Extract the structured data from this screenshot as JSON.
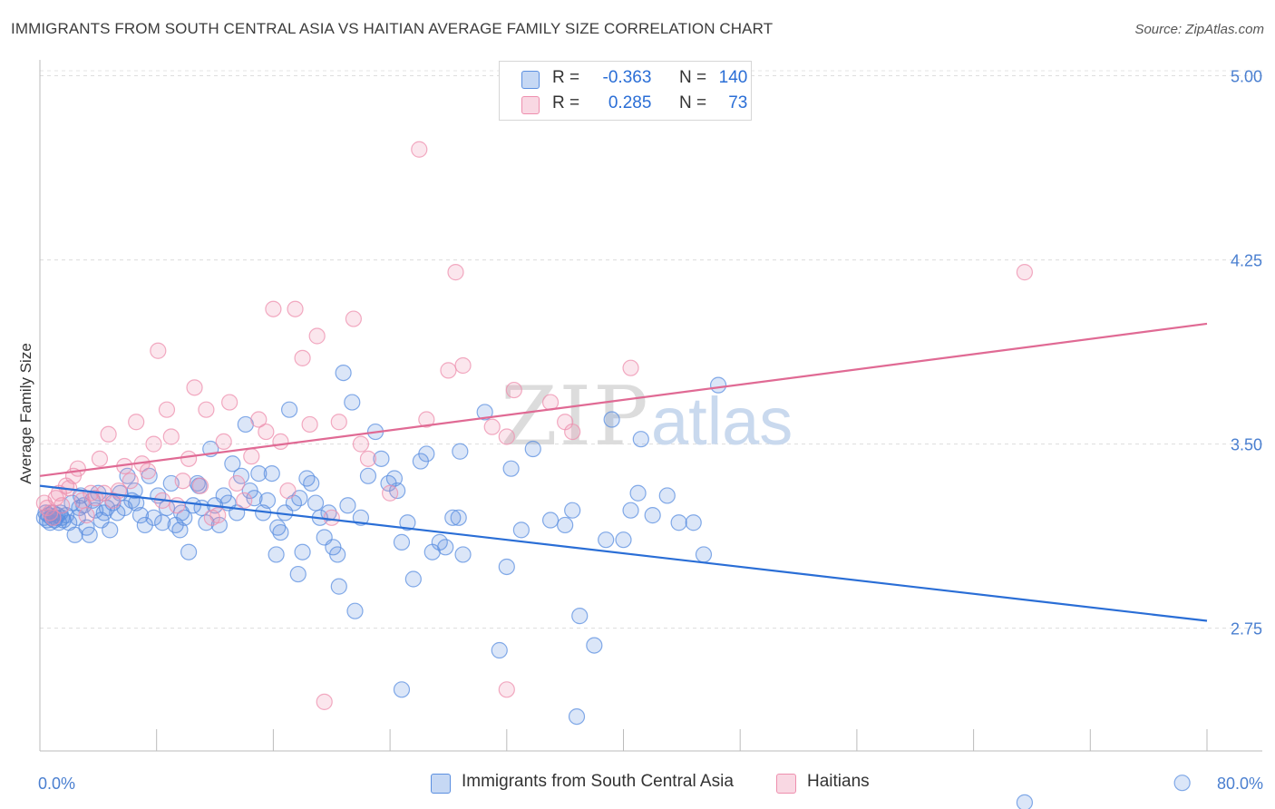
{
  "title": "IMMIGRANTS FROM SOUTH CENTRAL ASIA VS HAITIAN AVERAGE FAMILY SIZE CORRELATION CHART",
  "source": "Source: ZipAtlas.com",
  "watermark": {
    "zip": "ZIP",
    "atlas": "atlas"
  },
  "legend": {
    "r_label": "R =",
    "n_label": "N =",
    "rows": [
      {
        "r": "-0.363",
        "n": "140",
        "color": "#5b8fe0"
      },
      {
        "r": "0.285",
        "n": "73",
        "color": "#ee8fae"
      }
    ]
  },
  "chart_data": {
    "type": "scatter",
    "ylabel": "Average Family Size",
    "xlim": [
      0,
      80
    ],
    "ylim": [
      2.25,
      5.05
    ],
    "yticks": [
      2.75,
      3.5,
      4.25,
      5.0
    ],
    "ytick_labels": [
      "2.75",
      "3.50",
      "4.25",
      "5.00"
    ],
    "xtick_labels": [
      "0.0%",
      "80.0%"
    ],
    "grid": true,
    "legend_placement": "top-center",
    "series": [
      {
        "name": "Immigrants from South Central Asia",
        "color": "#5b8fe0",
        "trend": {
          "x": [
            0,
            80
          ],
          "y": [
            3.33,
            2.78
          ]
        },
        "points": [
          [
            0.3,
            3.2
          ],
          [
            0.4,
            3.22
          ],
          [
            0.5,
            3.19
          ],
          [
            0.6,
            3.21
          ],
          [
            0.7,
            3.18
          ],
          [
            0.8,
            3.2
          ],
          [
            0.9,
            3.22
          ],
          [
            1.0,
            3.19
          ],
          [
            1.1,
            3.2
          ],
          [
            1.2,
            3.21
          ],
          [
            1.3,
            3.18
          ],
          [
            1.4,
            3.22
          ],
          [
            1.5,
            3.2
          ],
          [
            1.6,
            3.19
          ],
          [
            1.8,
            3.21
          ],
          [
            2.0,
            3.18
          ],
          [
            2.2,
            3.26
          ],
          [
            2.4,
            3.13
          ],
          [
            2.6,
            3.2
          ],
          [
            2.8,
            3.29
          ],
          [
            3.0,
            3.25
          ],
          [
            3.2,
            3.16
          ],
          [
            3.4,
            3.13
          ],
          [
            3.6,
            3.27
          ],
          [
            3.8,
            3.23
          ],
          [
            4.0,
            3.3
          ],
          [
            4.2,
            3.19
          ],
          [
            4.4,
            3.22
          ],
          [
            4.6,
            3.24
          ],
          [
            4.8,
            3.15
          ],
          [
            5.0,
            3.26
          ],
          [
            5.3,
            3.22
          ],
          [
            5.5,
            3.3
          ],
          [
            5.8,
            3.24
          ],
          [
            6.0,
            3.37
          ],
          [
            6.3,
            3.27
          ],
          [
            6.6,
            3.26
          ],
          [
            6.9,
            3.21
          ],
          [
            7.2,
            3.17
          ],
          [
            7.5,
            3.37
          ],
          [
            7.8,
            3.2
          ],
          [
            8.1,
            3.29
          ],
          [
            8.4,
            3.18
          ],
          [
            8.7,
            3.24
          ],
          [
            9.0,
            3.34
          ],
          [
            9.3,
            3.17
          ],
          [
            9.6,
            3.15
          ],
          [
            9.9,
            3.2
          ],
          [
            10.2,
            3.06
          ],
          [
            10.5,
            3.25
          ],
          [
            10.8,
            3.34
          ],
          [
            11.1,
            3.24
          ],
          [
            11.4,
            3.18
          ],
          [
            11.7,
            3.48
          ],
          [
            12.0,
            3.25
          ],
          [
            12.3,
            3.17
          ],
          [
            12.6,
            3.29
          ],
          [
            12.9,
            3.26
          ],
          [
            13.2,
            3.42
          ],
          [
            13.5,
            3.22
          ],
          [
            13.8,
            3.37
          ],
          [
            14.1,
            3.58
          ],
          [
            14.4,
            3.31
          ],
          [
            14.7,
            3.28
          ],
          [
            15.0,
            3.38
          ],
          [
            15.3,
            3.22
          ],
          [
            15.6,
            3.27
          ],
          [
            15.9,
            3.38
          ],
          [
            16.2,
            3.05
          ],
          [
            16.5,
            3.14
          ],
          [
            16.8,
            3.22
          ],
          [
            17.1,
            3.64
          ],
          [
            17.4,
            3.26
          ],
          [
            17.7,
            2.97
          ],
          [
            18.0,
            3.06
          ],
          [
            18.3,
            3.36
          ],
          [
            18.6,
            3.34
          ],
          [
            18.9,
            3.26
          ],
          [
            19.2,
            3.2
          ],
          [
            19.5,
            3.12
          ],
          [
            19.8,
            3.22
          ],
          [
            20.1,
            3.08
          ],
          [
            20.4,
            3.05
          ],
          [
            20.5,
            2.92
          ],
          [
            20.8,
            3.79
          ],
          [
            21.1,
            3.25
          ],
          [
            21.4,
            3.67
          ],
          [
            21.6,
            2.82
          ],
          [
            22.0,
            3.2
          ],
          [
            22.5,
            3.37
          ],
          [
            23.0,
            3.55
          ],
          [
            23.4,
            3.44
          ],
          [
            23.9,
            3.34
          ],
          [
            24.3,
            3.36
          ],
          [
            24.8,
            3.1
          ],
          [
            25.2,
            3.18
          ],
          [
            25.6,
            2.95
          ],
          [
            26.1,
            3.43
          ],
          [
            26.5,
            3.46
          ],
          [
            26.9,
            3.06
          ],
          [
            27.4,
            3.1
          ],
          [
            27.8,
            3.08
          ],
          [
            28.3,
            3.2
          ],
          [
            28.7,
            3.2
          ],
          [
            29.0,
            3.05
          ],
          [
            30.5,
            3.63
          ],
          [
            31.5,
            2.66
          ],
          [
            32.0,
            3.0
          ],
          [
            32.3,
            3.4
          ],
          [
            33.0,
            3.15
          ],
          [
            33.8,
            3.48
          ],
          [
            35.0,
            3.19
          ],
          [
            36.0,
            3.17
          ],
          [
            36.5,
            3.23
          ],
          [
            37.0,
            2.8
          ],
          [
            38.0,
            2.68
          ],
          [
            38.8,
            3.11
          ],
          [
            39.2,
            3.6
          ],
          [
            40.0,
            3.11
          ],
          [
            40.5,
            3.23
          ],
          [
            41.0,
            3.3
          ],
          [
            41.2,
            3.52
          ],
          [
            42.0,
            3.21
          ],
          [
            43.0,
            3.29
          ],
          [
            43.8,
            3.18
          ],
          [
            44.8,
            3.18
          ],
          [
            45.5,
            3.05
          ],
          [
            46.5,
            3.74
          ],
          [
            24.8,
            2.5
          ],
          [
            36.8,
            2.39
          ],
          [
            67.5,
            2.04
          ],
          [
            78.3,
            2.12
          ],
          [
            6.5,
            3.31
          ],
          [
            17.8,
            3.28
          ],
          [
            2.7,
            3.24
          ],
          [
            9.7,
            3.22
          ],
          [
            10.9,
            3.33
          ],
          [
            28.8,
            3.47
          ],
          [
            24.5,
            3.31
          ],
          [
            16.3,
            3.16
          ]
        ]
      },
      {
        "name": "Haitians",
        "color": "#ee8fae",
        "trend": {
          "x": [
            0,
            80
          ],
          "y": [
            3.37,
            3.99
          ]
        },
        "points": [
          [
            0.3,
            3.26
          ],
          [
            0.5,
            3.24
          ],
          [
            0.7,
            3.22
          ],
          [
            0.9,
            3.2
          ],
          [
            1.1,
            3.28
          ],
          [
            1.3,
            3.3
          ],
          [
            1.5,
            3.25
          ],
          [
            1.8,
            3.33
          ],
          [
            2.0,
            3.32
          ],
          [
            2.3,
            3.37
          ],
          [
            2.6,
            3.4
          ],
          [
            2.9,
            3.27
          ],
          [
            3.2,
            3.21
          ],
          [
            3.5,
            3.3
          ],
          [
            3.8,
            3.28
          ],
          [
            4.1,
            3.44
          ],
          [
            4.4,
            3.3
          ],
          [
            4.7,
            3.54
          ],
          [
            5.0,
            3.27
          ],
          [
            5.4,
            3.31
          ],
          [
            5.8,
            3.41
          ],
          [
            6.2,
            3.35
          ],
          [
            6.6,
            3.59
          ],
          [
            7.0,
            3.42
          ],
          [
            7.4,
            3.39
          ],
          [
            7.8,
            3.5
          ],
          [
            8.1,
            3.88
          ],
          [
            8.4,
            3.27
          ],
          [
            8.7,
            3.64
          ],
          [
            9.0,
            3.53
          ],
          [
            9.4,
            3.25
          ],
          [
            9.8,
            3.35
          ],
          [
            10.2,
            3.44
          ],
          [
            10.6,
            3.73
          ],
          [
            11.0,
            3.33
          ],
          [
            11.4,
            3.64
          ],
          [
            11.8,
            3.2
          ],
          [
            12.2,
            3.21
          ],
          [
            12.6,
            3.51
          ],
          [
            13.0,
            3.67
          ],
          [
            13.5,
            3.34
          ],
          [
            14.0,
            3.27
          ],
          [
            14.5,
            3.45
          ],
          [
            15.0,
            3.6
          ],
          [
            15.5,
            3.55
          ],
          [
            16.0,
            4.05
          ],
          [
            16.5,
            3.51
          ],
          [
            17.0,
            3.31
          ],
          [
            17.5,
            4.05
          ],
          [
            18.0,
            3.85
          ],
          [
            18.5,
            3.58
          ],
          [
            19.0,
            3.94
          ],
          [
            20.0,
            3.2
          ],
          [
            20.5,
            3.59
          ],
          [
            21.5,
            4.01
          ],
          [
            22.0,
            3.5
          ],
          [
            22.5,
            3.44
          ],
          [
            24.0,
            3.3
          ],
          [
            26.0,
            4.7
          ],
          [
            26.5,
            3.6
          ],
          [
            28.0,
            3.8
          ],
          [
            28.5,
            4.2
          ],
          [
            29.0,
            3.82
          ],
          [
            31.0,
            3.57
          ],
          [
            32.0,
            3.53
          ],
          [
            32.5,
            3.72
          ],
          [
            35.0,
            3.67
          ],
          [
            36.0,
            3.59
          ],
          [
            36.5,
            3.55
          ],
          [
            40.5,
            3.81
          ],
          [
            19.5,
            2.45
          ],
          [
            32.0,
            2.5
          ],
          [
            67.5,
            4.2
          ]
        ]
      }
    ]
  },
  "bottom_legend": [
    "Immigrants from South Central Asia",
    "Haitians"
  ]
}
